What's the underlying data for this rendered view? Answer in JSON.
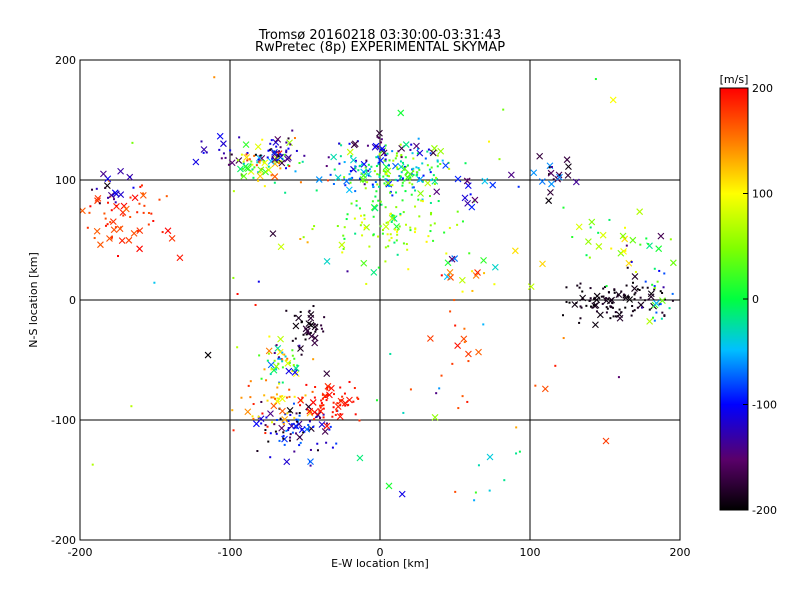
{
  "chart_data": {
    "type": "scatter",
    "title": "Tromsø 20160218 03:30:00-03:31:43",
    "subtitle": "RwPretec (8p) EXPERIMENTAL SKYMAP",
    "xlabel": "E-W location [km]",
    "ylabel": "N-S location [km]",
    "xlim": [
      -200,
      200
    ],
    "ylim": [
      -200,
      200
    ],
    "x_ticks": [
      "-200",
      "-100",
      "0",
      "100",
      "200"
    ],
    "y_ticks": [
      "-200",
      "-100",
      "0",
      "100",
      "200"
    ],
    "grid": true,
    "grid_values": [
      -100,
      0,
      100
    ],
    "colorbar": {
      "label": "[m/s]",
      "min": -200,
      "max": 200,
      "ticks": [
        "-200",
        "-100",
        "0",
        "100",
        "200"
      ],
      "colormap": "rainbow (black-purple-blue-cyan-green-yellow-red)"
    },
    "markers": {
      "small": "dot",
      "large": "x"
    },
    "clusters": [
      {
        "cx": -171,
        "cy": 68,
        "sx": 16,
        "sy": 14,
        "n": 60,
        "vmin": 160,
        "vmax": 200,
        "xfrac": 0.35
      },
      {
        "cx": -178,
        "cy": 92,
        "sx": 10,
        "sy": 8,
        "n": 18,
        "vmin": -200,
        "vmax": -100,
        "xfrac": 0.5
      },
      {
        "cx": -102,
        "cy": 122,
        "sx": 12,
        "sy": 8,
        "n": 20,
        "vmin": -180,
        "vmax": -100,
        "xfrac": 0.4
      },
      {
        "cx": -78,
        "cy": 115,
        "sx": 10,
        "sy": 9,
        "n": 70,
        "vmin": -60,
        "vmax": 200,
        "xfrac": 0.3
      },
      {
        "cx": -68,
        "cy": 123,
        "sx": 6,
        "sy": 6,
        "n": 40,
        "vmin": -200,
        "vmax": -80,
        "xfrac": 0.3
      },
      {
        "cx": -25,
        "cy": 108,
        "sx": 12,
        "sy": 7,
        "n": 30,
        "vmin": -160,
        "vmax": 0,
        "xfrac": 0.2
      },
      {
        "cx": 12,
        "cy": 108,
        "sx": 16,
        "sy": 11,
        "n": 170,
        "vmin": -100,
        "vmax": 80,
        "xfrac": 0.15
      },
      {
        "cx": 5,
        "cy": 128,
        "sx": 14,
        "sy": 5,
        "n": 30,
        "vmin": -180,
        "vmax": -100,
        "xfrac": 0.3
      },
      {
        "cx": 8,
        "cy": 65,
        "sx": 22,
        "sy": 18,
        "n": 110,
        "vmin": -20,
        "vmax": 110,
        "xfrac": 0.1
      },
      {
        "cx": 65,
        "cy": 90,
        "sx": 12,
        "sy": 8,
        "n": 14,
        "vmin": -160,
        "vmax": -40,
        "xfrac": 0.7
      },
      {
        "cx": 60,
        "cy": 26,
        "sx": 15,
        "sy": 9,
        "n": 14,
        "vmin": -120,
        "vmax": 160,
        "xfrac": 0.5
      },
      {
        "cx": 115,
        "cy": 103,
        "sx": 7,
        "sy": 7,
        "n": 20,
        "vmin": -200,
        "vmax": -60,
        "xfrac": 0.6
      },
      {
        "cx": 165,
        "cy": 48,
        "sx": 20,
        "sy": 14,
        "n": 30,
        "vmin": -20,
        "vmax": 120,
        "xfrac": 0.5
      },
      {
        "cx": 158,
        "cy": 0,
        "sx": 17,
        "sy": 8,
        "n": 110,
        "vmin": -200,
        "vmax": -180,
        "xfrac": 0.15
      },
      {
        "cx": 185,
        "cy": 10,
        "sx": 12,
        "sy": 15,
        "n": 25,
        "vmin": -140,
        "vmax": 60,
        "xfrac": 0.4
      },
      {
        "cx": -48,
        "cy": -22,
        "sx": 7,
        "sy": 10,
        "n": 40,
        "vmin": -200,
        "vmax": -170,
        "xfrac": 0.4
      },
      {
        "cx": -65,
        "cy": -52,
        "sx": 10,
        "sy": 9,
        "n": 55,
        "vmin": -180,
        "vmax": 160,
        "xfrac": 0.3
      },
      {
        "cx": -58,
        "cy": -108,
        "sx": 12,
        "sy": 11,
        "n": 90,
        "vmin": -200,
        "vmax": -60,
        "xfrac": 0.3
      },
      {
        "cx": -70,
        "cy": -86,
        "sx": 13,
        "sy": 9,
        "n": 45,
        "vmin": 80,
        "vmax": 200,
        "xfrac": 0.2
      },
      {
        "cx": -30,
        "cy": -86,
        "sx": 10,
        "sy": 10,
        "n": 60,
        "vmin": 180,
        "vmax": 200,
        "xfrac": 0.3
      },
      {
        "cx": 55,
        "cy": -52,
        "sx": 18,
        "sy": 30,
        "n": 22,
        "vmin": 150,
        "vmax": 200,
        "xfrac": 0.45
      },
      {
        "cx": 70,
        "cy": -130,
        "sx": 20,
        "sy": 30,
        "n": 10,
        "vmin": -60,
        "vmax": 60,
        "xfrac": 0.2
      },
      {
        "cx": 0,
        "cy": 0,
        "sx": 120,
        "sy": 120,
        "n": 60,
        "vmin": -200,
        "vmax": 200,
        "xfrac": 0.3
      }
    ]
  }
}
